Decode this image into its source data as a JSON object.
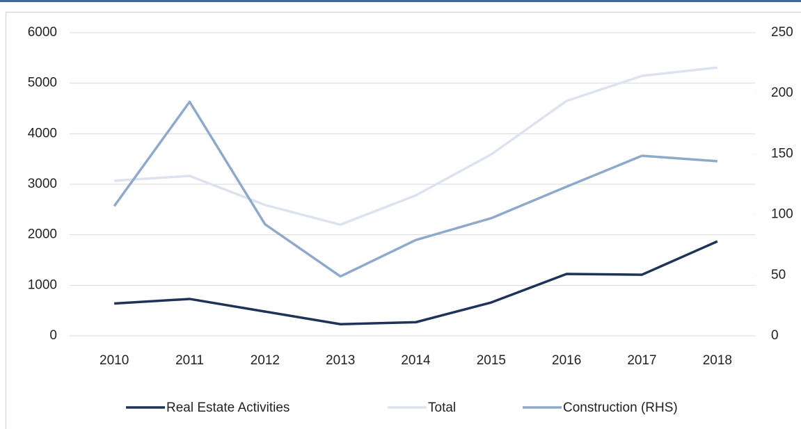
{
  "chart_data": {
    "type": "line",
    "x": [
      "2010",
      "2011",
      "2012",
      "2013",
      "2014",
      "2015",
      "2016",
      "2017",
      "2018"
    ],
    "series": [
      {
        "name": "Real Estate Activities",
        "color": "#1f3358",
        "values": [
          640,
          730,
          480,
          230,
          270,
          660,
          1225,
          1210,
          1870
        ]
      },
      {
        "name": "Total",
        "color": "#dce3ef",
        "values": [
          3070,
          3165,
          2590,
          2200,
          2780,
          3590,
          4650,
          5145,
          5310
        ]
      },
      {
        "name": "Construction (RHS)",
        "color": "#8eaacb",
        "axis": "y2",
        "values": [
          107,
          193,
          92,
          49,
          79,
          97,
          123,
          148.5,
          144
        ]
      }
    ],
    "ylim": [
      0,
      6000
    ],
    "yticks": [
      0,
      1000,
      2000,
      3000,
      4000,
      5000,
      6000
    ],
    "y2lim": [
      0,
      250
    ],
    "y2ticks": [
      0,
      50,
      100,
      150,
      200,
      250
    ],
    "grid": true,
    "legend": "bottom"
  }
}
